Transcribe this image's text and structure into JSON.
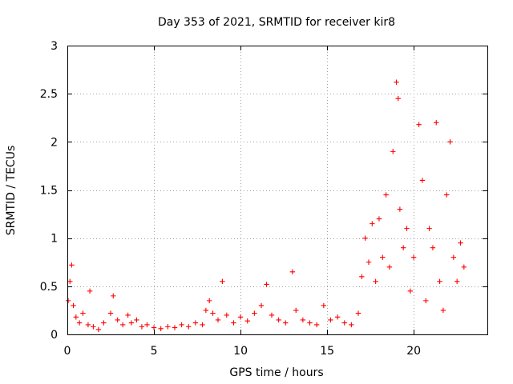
{
  "chart_data": {
    "type": "scatter",
    "title": "Day 353 of 2021, SRMTID for receiver kir8",
    "xlabel": "GPS time / hours",
    "ylabel": "SRMTID / TECUs",
    "xlim": [
      0,
      24.25
    ],
    "ylim": [
      0,
      3
    ],
    "x_ticks": [
      0,
      5,
      10,
      15,
      20
    ],
    "x_tick_labels": [
      "0",
      "5",
      "10",
      "15",
      "20"
    ],
    "y_ticks": [
      0,
      0.5,
      1,
      1.5,
      2,
      2.5,
      3
    ],
    "y_tick_labels": [
      "0",
      "0.5",
      "1",
      "1.5",
      "2",
      "2.5",
      "3"
    ],
    "grid": true,
    "marker": "+",
    "color": "#ff0000",
    "x_range_of_data": [
      0,
      22.9
    ],
    "series": [
      {
        "name": "SRMTID",
        "points": [
          [
            0.05,
            0.35
          ],
          [
            0.15,
            0.55
          ],
          [
            0.25,
            0.72
          ],
          [
            0.35,
            0.3
          ],
          [
            0.5,
            0.18
          ],
          [
            0.7,
            0.12
          ],
          [
            0.9,
            0.22
          ],
          [
            1.2,
            0.1
          ],
          [
            1.3,
            0.45
          ],
          [
            1.5,
            0.08
          ],
          [
            1.8,
            0.05
          ],
          [
            2.1,
            0.12
          ],
          [
            2.5,
            0.22
          ],
          [
            2.65,
            0.4
          ],
          [
            2.9,
            0.15
          ],
          [
            3.2,
            0.1
          ],
          [
            3.5,
            0.2
          ],
          [
            3.7,
            0.12
          ],
          [
            4.0,
            0.15
          ],
          [
            4.3,
            0.08
          ],
          [
            4.6,
            0.1
          ],
          [
            5.0,
            0.07
          ],
          [
            5.4,
            0.06
          ],
          [
            5.8,
            0.08
          ],
          [
            6.2,
            0.07
          ],
          [
            6.6,
            0.1
          ],
          [
            7.0,
            0.08
          ],
          [
            7.4,
            0.12
          ],
          [
            7.8,
            0.1
          ],
          [
            8.0,
            0.25
          ],
          [
            8.2,
            0.35
          ],
          [
            8.4,
            0.22
          ],
          [
            8.7,
            0.15
          ],
          [
            8.95,
            0.55
          ],
          [
            9.2,
            0.2
          ],
          [
            9.6,
            0.12
          ],
          [
            10.0,
            0.18
          ],
          [
            10.4,
            0.14
          ],
          [
            10.8,
            0.22
          ],
          [
            11.2,
            0.3
          ],
          [
            11.5,
            0.52
          ],
          [
            11.8,
            0.2
          ],
          [
            12.2,
            0.15
          ],
          [
            12.6,
            0.12
          ],
          [
            13.0,
            0.65
          ],
          [
            13.2,
            0.25
          ],
          [
            13.6,
            0.15
          ],
          [
            14.0,
            0.12
          ],
          [
            14.4,
            0.1
          ],
          [
            14.8,
            0.3
          ],
          [
            15.2,
            0.15
          ],
          [
            15.6,
            0.18
          ],
          [
            16.0,
            0.12
          ],
          [
            16.4,
            0.1
          ],
          [
            16.8,
            0.22
          ],
          [
            17.0,
            0.6
          ],
          [
            17.2,
            1.0
          ],
          [
            17.4,
            0.75
          ],
          [
            17.6,
            1.15
          ],
          [
            17.8,
            0.55
          ],
          [
            18.0,
            1.2
          ],
          [
            18.2,
            0.8
          ],
          [
            18.4,
            1.45
          ],
          [
            18.6,
            0.7
          ],
          [
            18.8,
            1.9
          ],
          [
            19.0,
            2.62
          ],
          [
            19.1,
            2.45
          ],
          [
            19.2,
            1.3
          ],
          [
            19.4,
            0.9
          ],
          [
            19.6,
            1.1
          ],
          [
            19.8,
            0.45
          ],
          [
            20.0,
            0.8
          ],
          [
            20.3,
            2.18
          ],
          [
            20.5,
            1.6
          ],
          [
            20.7,
            0.35
          ],
          [
            20.9,
            1.1
          ],
          [
            21.1,
            0.9
          ],
          [
            21.3,
            2.2
          ],
          [
            21.5,
            0.55
          ],
          [
            21.7,
            0.25
          ],
          [
            21.9,
            1.45
          ],
          [
            22.1,
            2.0
          ],
          [
            22.3,
            0.8
          ],
          [
            22.5,
            0.55
          ],
          [
            22.7,
            0.95
          ],
          [
            22.9,
            0.7
          ]
        ]
      }
    ]
  }
}
